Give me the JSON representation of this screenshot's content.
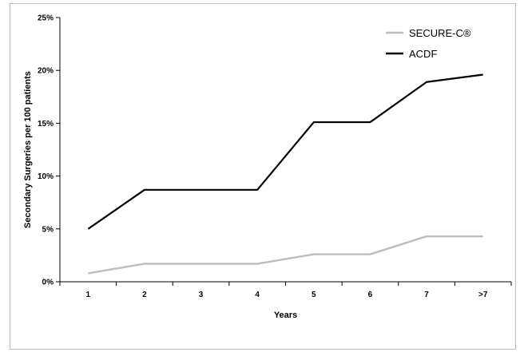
{
  "chart_data": {
    "type": "line",
    "categories": [
      "1",
      "2",
      "3",
      "4",
      "5",
      "6",
      "7",
      ">7"
    ],
    "series": [
      {
        "name": "SECURE-C®",
        "color": "#bdbdbd",
        "values": [
          0.8,
          1.7,
          1.7,
          1.7,
          2.6,
          2.6,
          4.3,
          4.3
        ]
      },
      {
        "name": "ACDF",
        "color": "#000000",
        "values": [
          5.0,
          8.7,
          8.7,
          8.7,
          15.1,
          15.1,
          18.9,
          19.6
        ]
      }
    ],
    "xlabel": "Years",
    "ylabel": "Secondary Surgeries per 100 patients",
    "ylim": [
      0,
      25
    ],
    "yticks": [
      0,
      5,
      10,
      15,
      20,
      25
    ],
    "ytick_labels": [
      "0%",
      "5%",
      "10%",
      "15%",
      "20%",
      "25%"
    ],
    "grid": false,
    "legend_position": "top-right"
  }
}
